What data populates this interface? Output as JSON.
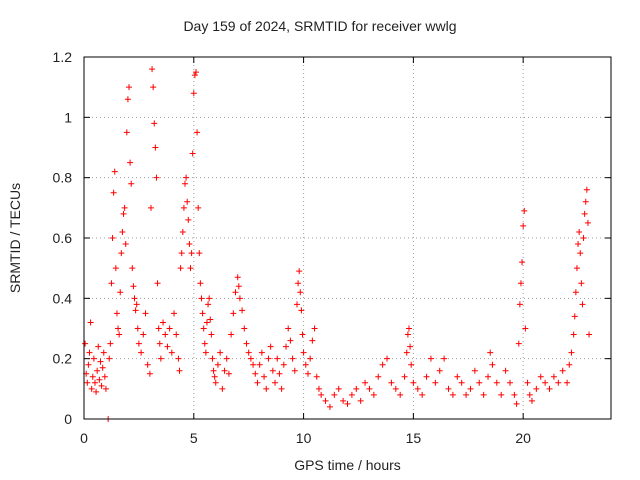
{
  "chart_data": {
    "type": "scatter",
    "title": "Day 159 of 2024, SRMTID for receiver wwlg",
    "xlabel": "GPS time / hours",
    "ylabel": "SRMTID / TECUs",
    "xlim": [
      0,
      24
    ],
    "ylim": [
      0,
      1.2
    ],
    "xticks": [
      0,
      5,
      10,
      15,
      20
    ],
    "xtick_labels": [
      "0",
      "5",
      "10",
      "15",
      "20"
    ],
    "yticks": [
      0,
      0.2,
      0.4,
      0.6,
      0.8,
      1.0,
      1.2
    ],
    "ytick_labels": [
      "0",
      "0.2",
      "0.4",
      "0.6",
      "0.8",
      "1",
      "1.2"
    ],
    "grid": true,
    "legend": "none",
    "marker": "+",
    "color": "#ff0000",
    "series": [
      {
        "name": "SRMTID",
        "points": [
          [
            0.05,
            0.25
          ],
          [
            0.1,
            0.15
          ],
          [
            0.15,
            0.12
          ],
          [
            0.2,
            0.18
          ],
          [
            0.25,
            0.22
          ],
          [
            0.3,
            0.32
          ],
          [
            0.35,
            0.1
          ],
          [
            0.4,
            0.14
          ],
          [
            0.45,
            0.2
          ],
          [
            0.5,
            0.12
          ],
          [
            0.55,
            0.09
          ],
          [
            0.6,
            0.16
          ],
          [
            0.65,
            0.24
          ],
          [
            0.7,
            0.13
          ],
          [
            0.75,
            0.19
          ],
          [
            0.8,
            0.11
          ],
          [
            0.85,
            0.17
          ],
          [
            0.9,
            0.22
          ],
          [
            0.95,
            0.14
          ],
          [
            1.0,
            0.1
          ],
          [
            1.1,
            0.0
          ],
          [
            1.15,
            0.2
          ],
          [
            1.2,
            0.25
          ],
          [
            1.25,
            0.45
          ],
          [
            1.3,
            0.6
          ],
          [
            1.35,
            0.75
          ],
          [
            1.4,
            0.82
          ],
          [
            1.45,
            0.5
          ],
          [
            1.5,
            0.35
          ],
          [
            1.55,
            0.3
          ],
          [
            1.6,
            0.28
          ],
          [
            1.65,
            0.42
          ],
          [
            1.7,
            0.55
          ],
          [
            1.75,
            0.62
          ],
          [
            1.8,
            0.68
          ],
          [
            1.85,
            0.7
          ],
          [
            1.9,
            0.58
          ],
          [
            1.95,
            0.95
          ],
          [
            2.0,
            1.06
          ],
          [
            2.05,
            1.1
          ],
          [
            2.1,
            0.85
          ],
          [
            2.15,
            0.78
          ],
          [
            2.2,
            0.5
          ],
          [
            2.25,
            0.44
          ],
          [
            2.3,
            0.4
          ],
          [
            2.35,
            0.36
          ],
          [
            2.4,
            0.38
          ],
          [
            2.45,
            0.3
          ],
          [
            2.5,
            0.25
          ],
          [
            2.6,
            0.22
          ],
          [
            2.7,
            0.28
          ],
          [
            2.8,
            0.35
          ],
          [
            2.9,
            0.18
          ],
          [
            3.0,
            0.15
          ],
          [
            3.05,
            0.7
          ],
          [
            3.1,
            1.16
          ],
          [
            3.15,
            1.1
          ],
          [
            3.2,
            0.98
          ],
          [
            3.25,
            0.9
          ],
          [
            3.3,
            0.8
          ],
          [
            3.35,
            0.45
          ],
          [
            3.4,
            0.3
          ],
          [
            3.45,
            0.25
          ],
          [
            3.5,
            0.2
          ],
          [
            3.6,
            0.32
          ],
          [
            3.7,
            0.28
          ],
          [
            3.8,
            0.24
          ],
          [
            3.9,
            0.3
          ],
          [
            4.0,
            0.22
          ],
          [
            4.1,
            0.35
          ],
          [
            4.2,
            0.28
          ],
          [
            4.3,
            0.2
          ],
          [
            4.35,
            0.16
          ],
          [
            4.4,
            0.5
          ],
          [
            4.45,
            0.55
          ],
          [
            4.5,
            0.62
          ],
          [
            4.55,
            0.7
          ],
          [
            4.6,
            0.78
          ],
          [
            4.65,
            0.8
          ],
          [
            4.7,
            0.72
          ],
          [
            4.75,
            0.66
          ],
          [
            4.8,
            0.58
          ],
          [
            4.85,
            0.5
          ],
          [
            4.9,
            0.55
          ],
          [
            4.95,
            0.88
          ],
          [
            5.0,
            1.08
          ],
          [
            5.05,
            1.14
          ],
          [
            5.1,
            1.15
          ],
          [
            5.15,
            0.95
          ],
          [
            5.2,
            0.7
          ],
          [
            5.25,
            0.55
          ],
          [
            5.3,
            0.45
          ],
          [
            5.35,
            0.4
          ],
          [
            5.4,
            0.35
          ],
          [
            5.45,
            0.3
          ],
          [
            5.5,
            0.25
          ],
          [
            5.55,
            0.22
          ],
          [
            5.6,
            0.32
          ],
          [
            5.65,
            0.38
          ],
          [
            5.7,
            0.4
          ],
          [
            5.75,
            0.33
          ],
          [
            5.8,
            0.28
          ],
          [
            5.85,
            0.2
          ],
          [
            5.9,
            0.16
          ],
          [
            5.95,
            0.14
          ],
          [
            6.0,
            0.12
          ],
          [
            6.1,
            0.18
          ],
          [
            6.2,
            0.22
          ],
          [
            6.3,
            0.1
          ],
          [
            6.4,
            0.16
          ],
          [
            6.5,
            0.2
          ],
          [
            6.6,
            0.15
          ],
          [
            6.7,
            0.28
          ],
          [
            6.8,
            0.35
          ],
          [
            6.9,
            0.42
          ],
          [
            7.0,
            0.47
          ],
          [
            7.05,
            0.44
          ],
          [
            7.1,
            0.4
          ],
          [
            7.2,
            0.36
          ],
          [
            7.3,
            0.3
          ],
          [
            7.4,
            0.25
          ],
          [
            7.5,
            0.22
          ],
          [
            7.6,
            0.2
          ],
          [
            7.7,
            0.18
          ],
          [
            7.8,
            0.15
          ],
          [
            7.9,
            0.12
          ],
          [
            8.0,
            0.18
          ],
          [
            8.1,
            0.22
          ],
          [
            8.2,
            0.14
          ],
          [
            8.3,
            0.1
          ],
          [
            8.4,
            0.2
          ],
          [
            8.5,
            0.24
          ],
          [
            8.6,
            0.16
          ],
          [
            8.7,
            0.12
          ],
          [
            8.8,
            0.2
          ],
          [
            8.9,
            0.15
          ],
          [
            9.0,
            0.1
          ],
          [
            9.1,
            0.18
          ],
          [
            9.2,
            0.24
          ],
          [
            9.3,
            0.3
          ],
          [
            9.4,
            0.26
          ],
          [
            9.5,
            0.2
          ],
          [
            9.6,
            0.16
          ],
          [
            9.7,
            0.38
          ],
          [
            9.75,
            0.45
          ],
          [
            9.8,
            0.49
          ],
          [
            9.85,
            0.42
          ],
          [
            9.9,
            0.36
          ],
          [
            9.95,
            0.28
          ],
          [
            10.0,
            0.22
          ],
          [
            10.1,
            0.18
          ],
          [
            10.2,
            0.15
          ],
          [
            10.3,
            0.2
          ],
          [
            10.4,
            0.26
          ],
          [
            10.5,
            0.3
          ],
          [
            10.6,
            0.14
          ],
          [
            10.7,
            0.1
          ],
          [
            10.8,
            0.08
          ],
          [
            11.0,
            0.06
          ],
          [
            11.2,
            0.04
          ],
          [
            11.4,
            0.08
          ],
          [
            11.6,
            0.1
          ],
          [
            11.8,
            0.06
          ],
          [
            12.0,
            0.05
          ],
          [
            12.2,
            0.08
          ],
          [
            12.4,
            0.1
          ],
          [
            12.6,
            0.06
          ],
          [
            12.8,
            0.12
          ],
          [
            13.0,
            0.1
          ],
          [
            13.2,
            0.08
          ],
          [
            13.4,
            0.14
          ],
          [
            13.6,
            0.18
          ],
          [
            13.8,
            0.2
          ],
          [
            14.0,
            0.12
          ],
          [
            14.2,
            0.1
          ],
          [
            14.4,
            0.08
          ],
          [
            14.6,
            0.14
          ],
          [
            14.7,
            0.22
          ],
          [
            14.75,
            0.28
          ],
          [
            14.8,
            0.3
          ],
          [
            14.85,
            0.24
          ],
          [
            14.9,
            0.18
          ],
          [
            15.0,
            0.12
          ],
          [
            15.2,
            0.1
          ],
          [
            15.4,
            0.08
          ],
          [
            15.6,
            0.14
          ],
          [
            15.8,
            0.2
          ],
          [
            16.0,
            0.12
          ],
          [
            16.2,
            0.16
          ],
          [
            16.4,
            0.2
          ],
          [
            16.6,
            0.1
          ],
          [
            16.8,
            0.08
          ],
          [
            17.0,
            0.14
          ],
          [
            17.2,
            0.12
          ],
          [
            17.4,
            0.08
          ],
          [
            17.6,
            0.1
          ],
          [
            17.8,
            0.16
          ],
          [
            18.0,
            0.12
          ],
          [
            18.2,
            0.08
          ],
          [
            18.4,
            0.14
          ],
          [
            18.5,
            0.22
          ],
          [
            18.6,
            0.18
          ],
          [
            18.8,
            0.12
          ],
          [
            19.0,
            0.08
          ],
          [
            19.2,
            0.16
          ],
          [
            19.4,
            0.12
          ],
          [
            19.6,
            0.08
          ],
          [
            19.7,
            0.05
          ],
          [
            19.8,
            0.25
          ],
          [
            19.85,
            0.38
          ],
          [
            19.9,
            0.45
          ],
          [
            19.95,
            0.52
          ],
          [
            20.0,
            0.64
          ],
          [
            20.05,
            0.69
          ],
          [
            20.1,
            0.3
          ],
          [
            20.2,
            0.12
          ],
          [
            20.3,
            0.08
          ],
          [
            20.4,
            0.06
          ],
          [
            20.6,
            0.1
          ],
          [
            20.8,
            0.14
          ],
          [
            21.0,
            0.12
          ],
          [
            21.2,
            0.1
          ],
          [
            21.4,
            0.14
          ],
          [
            21.6,
            0.12
          ],
          [
            21.8,
            0.16
          ],
          [
            22.0,
            0.12
          ],
          [
            22.1,
            0.18
          ],
          [
            22.2,
            0.22
          ],
          [
            22.3,
            0.28
          ],
          [
            22.35,
            0.34
          ],
          [
            22.4,
            0.42
          ],
          [
            22.45,
            0.5
          ],
          [
            22.5,
            0.58
          ],
          [
            22.55,
            0.62
          ],
          [
            22.6,
            0.55
          ],
          [
            22.65,
            0.45
          ],
          [
            22.7,
            0.38
          ],
          [
            22.75,
            0.6
          ],
          [
            22.8,
            0.68
          ],
          [
            22.85,
            0.72
          ],
          [
            22.9,
            0.76
          ],
          [
            22.95,
            0.65
          ],
          [
            23.0,
            0.28
          ]
        ]
      }
    ]
  }
}
